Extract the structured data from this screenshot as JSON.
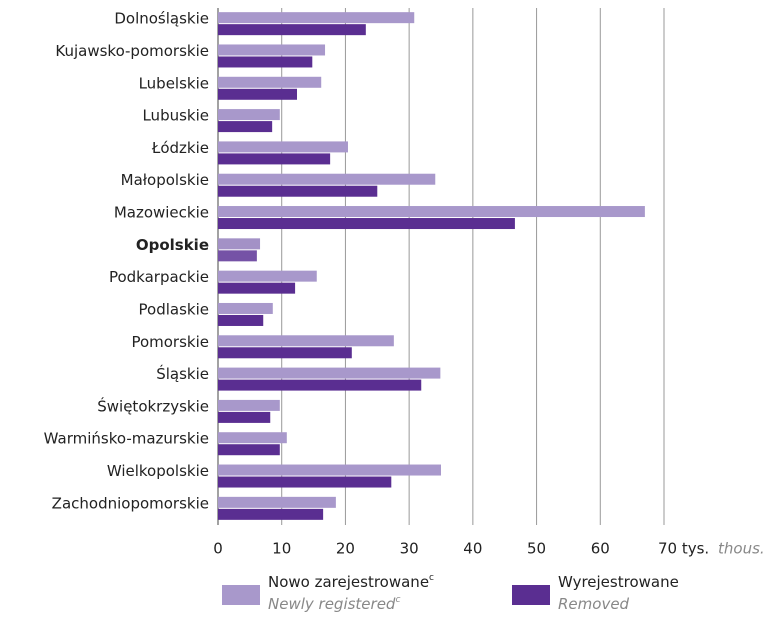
{
  "chart_data": {
    "type": "bar",
    "orientation": "horizontal",
    "categories": [
      "Dolnośląskie",
      "Kujawsko-pomorskie",
      "Lubelskie",
      "Lubuskie",
      "Łódzkie",
      "Małopolskie",
      "Mazowieckie",
      "Opolskie",
      "Podkarpackie",
      "Podlaskie",
      "Pomorskie",
      "Śląskie",
      "Świętokrzyskie",
      "Warmińsko-mazurskie",
      "Wielkopolskie",
      "Zachodniopomorskie"
    ],
    "highlight_index": 7,
    "series": [
      {
        "name": "Nowo zarejestrowane",
        "name_note": "c",
        "name_en": "Newly registered",
        "name_en_note": "c",
        "color": "#a898cb",
        "highlight_color": "#a391c6",
        "values": [
          30.8,
          16.8,
          16.2,
          9.7,
          20.4,
          34.1,
          67.0,
          6.6,
          15.5,
          8.6,
          27.6,
          34.9,
          9.7,
          10.8,
          35.0,
          18.5
        ]
      },
      {
        "name": "Wyrejestrowane",
        "name_en": "Removed",
        "color": "#5a2e91",
        "highlight_color": "#7552a6",
        "values": [
          23.2,
          14.8,
          12.4,
          8.5,
          17.6,
          25.0,
          46.6,
          6.1,
          12.1,
          7.1,
          21.0,
          31.9,
          8.2,
          9.7,
          27.2,
          16.5
        ]
      }
    ],
    "xlim": [
      0,
      70
    ],
    "xticks": [
      0,
      10,
      20,
      30,
      40,
      50,
      60,
      {
        "value": 70,
        "label": "70 tys."
      }
    ],
    "x_unit_en": "thous.",
    "grid": true
  }
}
